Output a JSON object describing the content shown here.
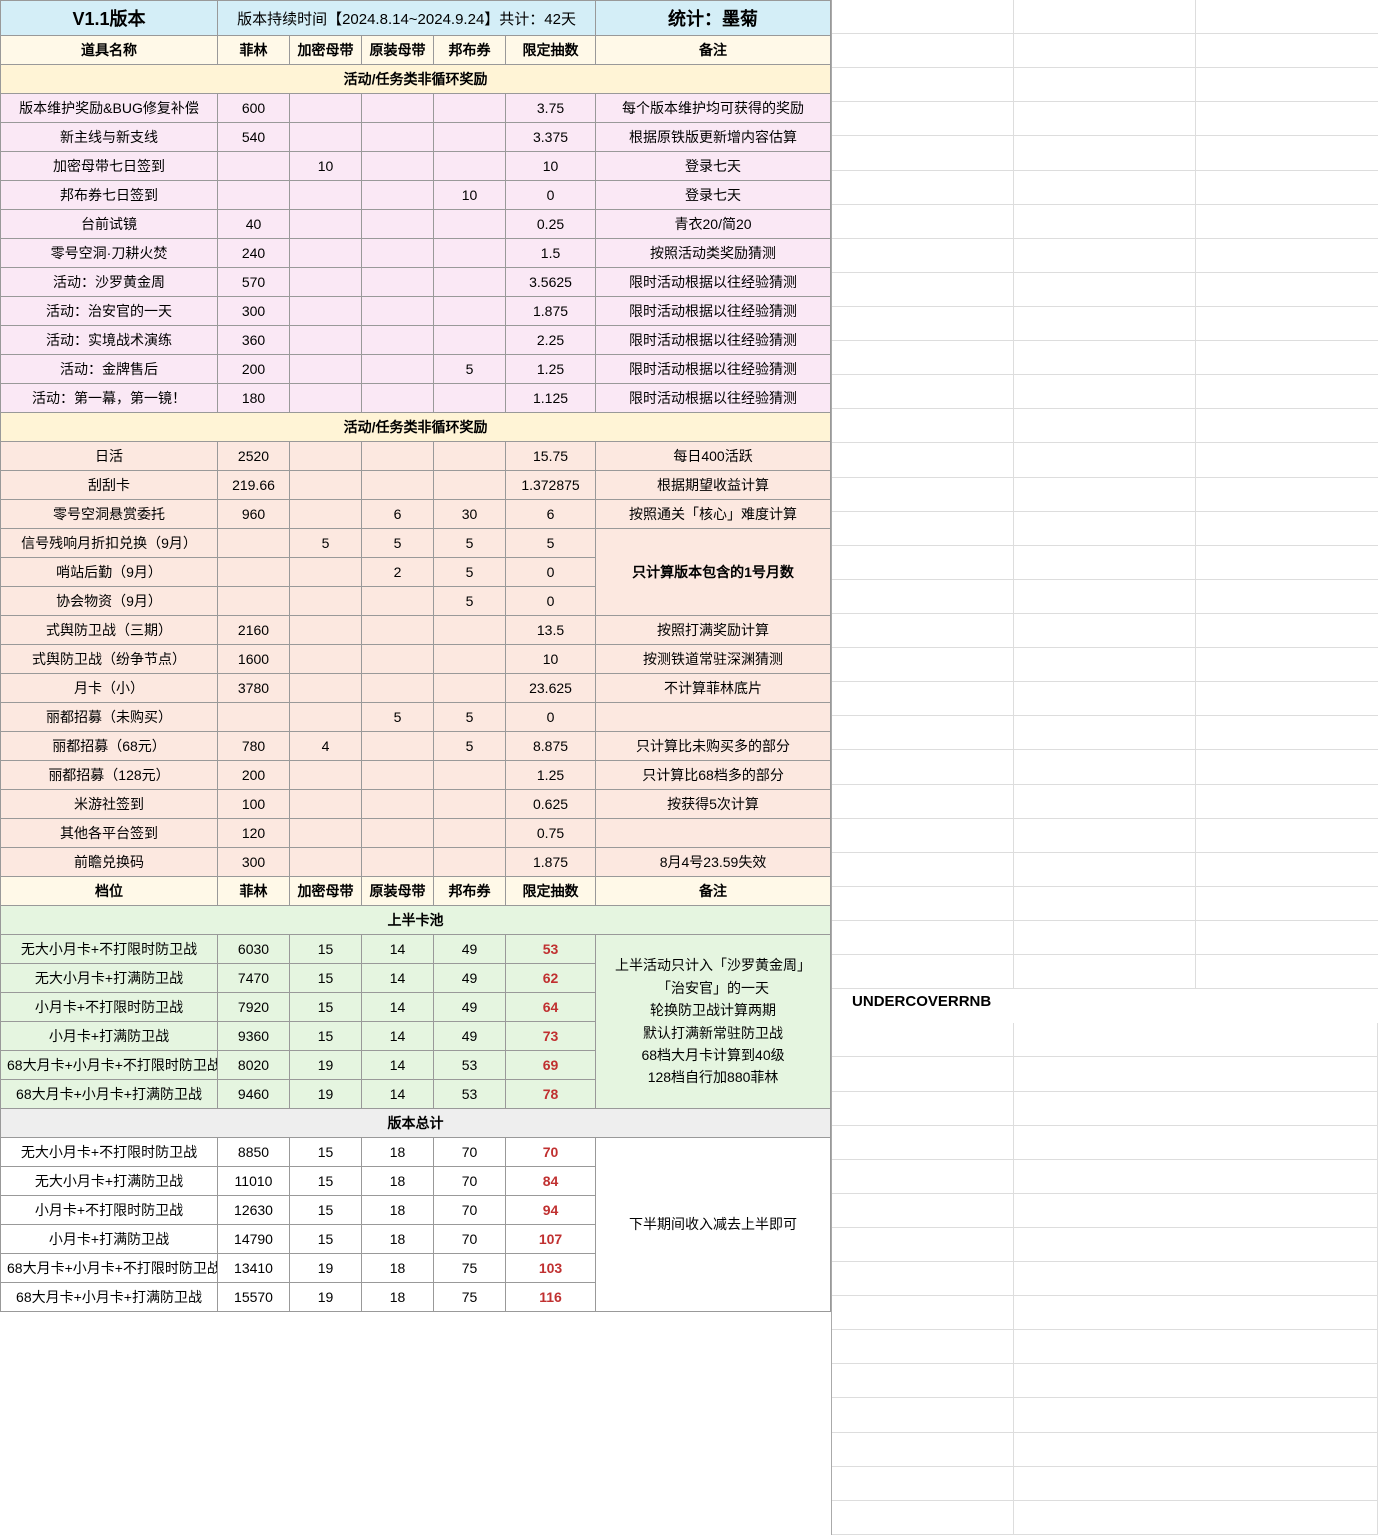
{
  "colors": {
    "header_blue": "#d4eef7",
    "header_yellow": "#fff9e8",
    "section_yellow": "#fff4d6",
    "section_green": "#e5f5e0",
    "section_gray": "#eeeeee",
    "row_pink": "#fae8f5",
    "row_peach": "#fce8e0",
    "row_green": "#e5f5e0",
    "red_text": "#c03030"
  },
  "top": {
    "version_label": "V1.1版本",
    "duration_label": "版本持续时间【2024.8.14~2024.9.24】共计：42天",
    "stat_label": "统计：墨菊"
  },
  "cols": {
    "c0": "道具名称",
    "c1": "菲林",
    "c2": "加密母带",
    "c3": "原装母带",
    "c4": "邦布券",
    "c5": "限定抽数",
    "c6": "备注"
  },
  "sec1": {
    "title": "活动/任务类非循环奖励",
    "rows": [
      {
        "name": "版本维护奖励&BUG修复补偿",
        "c1": "600",
        "c2": "",
        "c3": "",
        "c4": "",
        "c5": "3.75",
        "note": "每个版本维护均可获得的奖励"
      },
      {
        "name": "新主线与新支线",
        "c1": "540",
        "c2": "",
        "c3": "",
        "c4": "",
        "c5": "3.375",
        "note": "根据原铁版更新增内容估算"
      },
      {
        "name": "加密母带七日签到",
        "c1": "",
        "c2": "10",
        "c3": "",
        "c4": "",
        "c5": "10",
        "note": "登录七天"
      },
      {
        "name": "邦布券七日签到",
        "c1": "",
        "c2": "",
        "c3": "",
        "c4": "10",
        "c5": "0",
        "note": "登录七天"
      },
      {
        "name": "台前试镜",
        "c1": "40",
        "c2": "",
        "c3": "",
        "c4": "",
        "c5": "0.25",
        "note": "青衣20/简20"
      },
      {
        "name": "零号空洞·刀耕火焚",
        "c1": "240",
        "c2": "",
        "c3": "",
        "c4": "",
        "c5": "1.5",
        "note": "按照活动类奖励猜测"
      },
      {
        "name": "活动：沙罗黄金周",
        "c1": "570",
        "c2": "",
        "c3": "",
        "c4": "",
        "c5": "3.5625",
        "note": "限时活动根据以往经验猜测"
      },
      {
        "name": "活动：治安官的一天",
        "c1": "300",
        "c2": "",
        "c3": "",
        "c4": "",
        "c5": "1.875",
        "note": "限时活动根据以往经验猜测"
      },
      {
        "name": "活动：实境战术演练",
        "c1": "360",
        "c2": "",
        "c3": "",
        "c4": "",
        "c5": "2.25",
        "note": "限时活动根据以往经验猜测"
      },
      {
        "name": "活动：金牌售后",
        "c1": "200",
        "c2": "",
        "c3": "",
        "c4": "5",
        "c5": "1.25",
        "note": "限时活动根据以往经验猜测"
      },
      {
        "name": "活动：第一幕，第一镜！",
        "c1": "180",
        "c2": "",
        "c3": "",
        "c4": "",
        "c5": "1.125",
        "note": "限时活动根据以往经验猜测"
      }
    ]
  },
  "sec2": {
    "title": "活动/任务类非循环奖励",
    "rows": [
      {
        "name": "日活",
        "c1": "2520",
        "c2": "",
        "c3": "",
        "c4": "",
        "c5": "15.75",
        "note": "每日400活跃"
      },
      {
        "name": "刮刮卡",
        "c1": "219.66",
        "c2": "",
        "c3": "",
        "c4": "",
        "c5": "1.372875",
        "note": "根据期望收益计算"
      },
      {
        "name": "零号空洞悬赏委托",
        "c1": "960",
        "c2": "",
        "c3": "6",
        "c4": "30",
        "c5": "6",
        "note": "按照通关「核心」难度计算"
      },
      {
        "name": "信号残响月折扣兑换（9月）",
        "c1": "",
        "c2": "5",
        "c3": "5",
        "c4": "5",
        "c5": "5",
        "note": ""
      },
      {
        "name": "哨站后勤（9月）",
        "c1": "",
        "c2": "",
        "c3": "2",
        "c4": "5",
        "c5": "0",
        "note": ""
      },
      {
        "name": "协会物资（9月）",
        "c1": "",
        "c2": "",
        "c3": "",
        "c4": "5",
        "c5": "0",
        "note": ""
      },
      {
        "name": "式舆防卫战（三期）",
        "c1": "2160",
        "c2": "",
        "c3": "",
        "c4": "",
        "c5": "13.5",
        "note": "按照打满奖励计算"
      },
      {
        "name": "式舆防卫战（纷争节点）",
        "c1": "1600",
        "c2": "",
        "c3": "",
        "c4": "",
        "c5": "10",
        "note": "按测铁道常驻深渊猜测"
      },
      {
        "name": "月卡（小）",
        "c1": "3780",
        "c2": "",
        "c3": "",
        "c4": "",
        "c5": "23.625",
        "note": "不计算菲林底片"
      },
      {
        "name": "丽都招募（未购买）",
        "c1": "",
        "c2": "",
        "c3": "5",
        "c4": "5",
        "c5": "0",
        "note": ""
      },
      {
        "name": "丽都招募（68元）",
        "c1": "780",
        "c2": "4",
        "c3": "",
        "c4": "5",
        "c5": "8.875",
        "note": "只计算比未购买多的部分"
      },
      {
        "name": "丽都招募（128元）",
        "c1": "200",
        "c2": "",
        "c3": "",
        "c4": "",
        "c5": "1.25",
        "note": "只计算比68档多的部分"
      },
      {
        "name": "米游社签到",
        "c1": "100",
        "c2": "",
        "c3": "",
        "c4": "",
        "c5": "0.625",
        "note": "按获得5次计算"
      },
      {
        "name": "其他各平台签到",
        "c1": "120",
        "c2": "",
        "c3": "",
        "c4": "",
        "c5": "0.75",
        "note": ""
      },
      {
        "name": "前瞻兑换码",
        "c1": "300",
        "c2": "",
        "c3": "",
        "c4": "",
        "c5": "1.875",
        "note": "8月4号23.59失效"
      }
    ],
    "merge_note": "只计算版本包含的1号月数"
  },
  "tier": {
    "label": "档位",
    "cols": {
      "c1": "菲林",
      "c2": "加密母带",
      "c3": "原装母带",
      "c4": "邦布券",
      "c5": "限定抽数",
      "c6": "备注"
    }
  },
  "sec3": {
    "title": "上半卡池",
    "rows": [
      {
        "name": "无大小月卡+不打限时防卫战",
        "c1": "6030",
        "c2": "15",
        "c3": "14",
        "c4": "49",
        "c5": "53"
      },
      {
        "name": "无大小月卡+打满防卫战",
        "c1": "7470",
        "c2": "15",
        "c3": "14",
        "c4": "49",
        "c5": "62"
      },
      {
        "name": "小月卡+不打限时防卫战",
        "c1": "7920",
        "c2": "15",
        "c3": "14",
        "c4": "49",
        "c5": "64"
      },
      {
        "name": "小月卡+打满防卫战",
        "c1": "9360",
        "c2": "15",
        "c3": "14",
        "c4": "49",
        "c5": "73"
      },
      {
        "name": "68大月卡+小月卡+不打限时防卫战",
        "c1": "8020",
        "c2": "19",
        "c3": "14",
        "c4": "53",
        "c5": "69"
      },
      {
        "name": "68大月卡+小月卡+打满防卫战",
        "c1": "9460",
        "c2": "19",
        "c3": "14",
        "c4": "53",
        "c5": "78"
      }
    ],
    "note": "上半活动只计入「沙罗黄金周」\n「治安官」的一天\n轮换防卫战计算两期\n默认打满新常驻防卫战\n68档大月卡计算到40级\n128档自行加880菲林"
  },
  "sec4": {
    "title": "版本总计",
    "rows": [
      {
        "name": "无大小月卡+不打限时防卫战",
        "c1": "8850",
        "c2": "15",
        "c3": "18",
        "c4": "70",
        "c5": "70"
      },
      {
        "name": "无大小月卡+打满防卫战",
        "c1": "11010",
        "c2": "15",
        "c3": "18",
        "c4": "70",
        "c5": "84"
      },
      {
        "name": "小月卡+不打限时防卫战",
        "c1": "12630",
        "c2": "15",
        "c3": "18",
        "c4": "70",
        "c5": "94"
      },
      {
        "name": "小月卡+打满防卫战",
        "c1": "14790",
        "c2": "15",
        "c3": "18",
        "c4": "70",
        "c5": "107"
      },
      {
        "name": "68大月卡+小月卡+不打限时防卫战",
        "c1": "13410",
        "c2": "19",
        "c3": "18",
        "c4": "75",
        "c5": "103"
      },
      {
        "name": "68大月卡+小月卡+打满防卫战",
        "c1": "15570",
        "c2": "19",
        "c3": "18",
        "c4": "75",
        "c5": "116"
      }
    ],
    "note": "下半期间收入减去上半即可"
  },
  "side": {
    "watermark": "UNDERCOVERRNB"
  }
}
